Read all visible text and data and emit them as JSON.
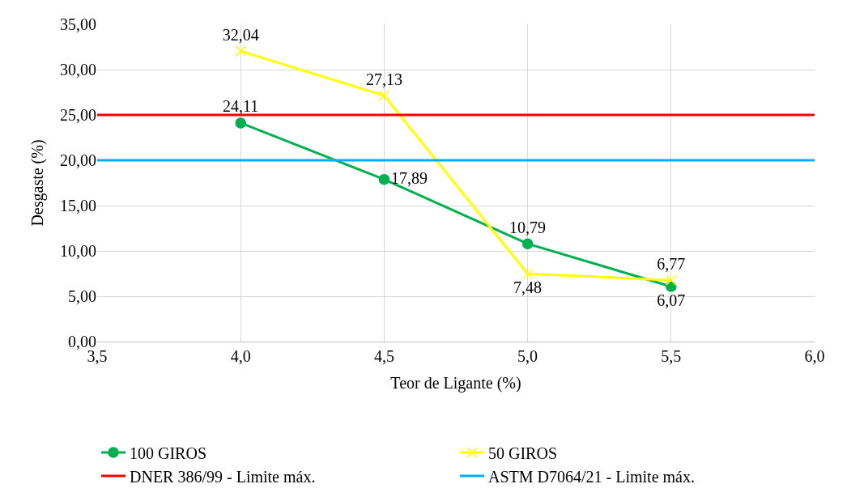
{
  "chart_data": {
    "type": "line",
    "xlabel": "Teor de Ligante (%)",
    "ylabel": "Desgaste (%)",
    "x": [
      4.0,
      4.5,
      5.0,
      5.5
    ],
    "xlim": [
      3.5,
      6.0
    ],
    "xticks": [
      {
        "value": 3.5,
        "label": "3,5"
      },
      {
        "value": 4.0,
        "label": "4,0"
      },
      {
        "value": 4.5,
        "label": "4,5"
      },
      {
        "value": 5.0,
        "label": "5,0"
      },
      {
        "value": 5.5,
        "label": "5,5"
      },
      {
        "value": 6.0,
        "label": "6,0"
      }
    ],
    "ylim": [
      0,
      35
    ],
    "yticks": [
      {
        "value": 0,
        "label": "0,00"
      },
      {
        "value": 5,
        "label": "5,00"
      },
      {
        "value": 10,
        "label": "10,00"
      },
      {
        "value": 15,
        "label": "15,00"
      },
      {
        "value": 20,
        "label": "20,00"
      },
      {
        "value": 25,
        "label": "25,00"
      },
      {
        "value": 30,
        "label": "30,00"
      },
      {
        "value": 35,
        "label": "35,00"
      }
    ],
    "series": [
      {
        "name": "100 GIROS",
        "color": "#00b050",
        "marker": "circle",
        "values": [
          24.11,
          17.89,
          10.79,
          6.07
        ],
        "value_labels": [
          "24,11",
          "17,89",
          "10,79",
          "6,07"
        ]
      },
      {
        "name": "50 GIROS",
        "color": "#ffff00",
        "marker": "cross",
        "values": [
          32.04,
          27.13,
          7.48,
          6.77
        ],
        "value_labels": [
          "32,04",
          "27,13",
          "7,48",
          "6,77"
        ]
      }
    ],
    "ref_lines": [
      {
        "axis": "y",
        "value": 25,
        "label": "DNER 386/99 - Limite máx.",
        "color": "#ff0000"
      },
      {
        "axis": "y",
        "value": 20,
        "label": "ASTM D7064/21 - Limite máx.",
        "color": "#00b0f0"
      }
    ],
    "grid": true,
    "legend": "bottom"
  }
}
